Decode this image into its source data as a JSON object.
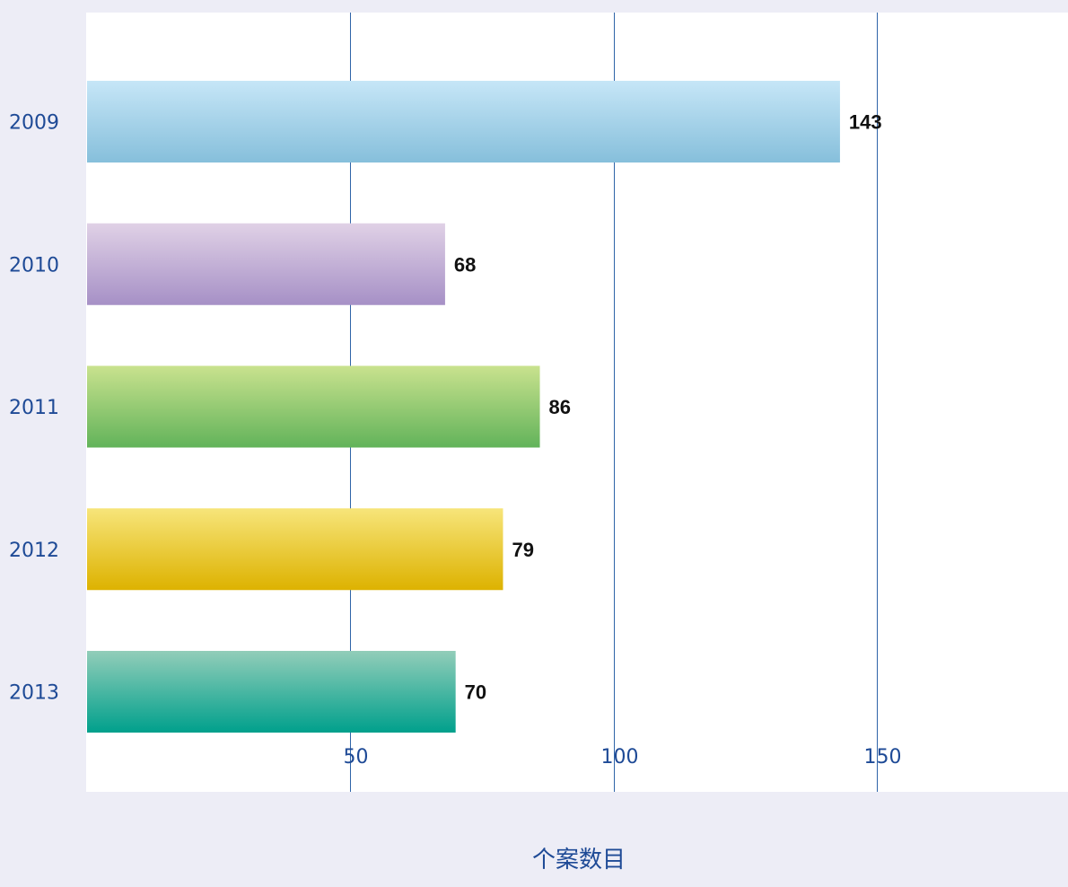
{
  "chart_data": {
    "type": "bar",
    "orientation": "horizontal",
    "categories": [
      "2009",
      "2010",
      "2011",
      "2012",
      "2013"
    ],
    "values": [
      143,
      68,
      86,
      79,
      70
    ],
    "value_labels": [
      "143",
      "68",
      "86",
      "79",
      "70"
    ],
    "xlabel": "个案数目",
    "x_ticks": [
      50,
      100,
      150
    ],
    "x_tick_labels": [
      "50",
      "100",
      "150"
    ],
    "xlim": [
      0,
      185
    ],
    "grid": true,
    "legend": "none",
    "bar_colors": [
      {
        "top": "#c6e6f7",
        "bottom": "#86bfdb"
      },
      {
        "top": "#e0d1e6",
        "bottom": "#a690c6"
      },
      {
        "top": "#c9e28e",
        "bottom": "#62b35a"
      },
      {
        "top": "#f7e57a",
        "bottom": "#ddb200"
      },
      {
        "top": "#92cdb9",
        "bottom": "#00a08c"
      }
    ],
    "background_color": "#ededf6",
    "plot_background_color": "#ffffff",
    "gridline_color": "#2f64a8",
    "label_color": "#1e4a96"
  }
}
